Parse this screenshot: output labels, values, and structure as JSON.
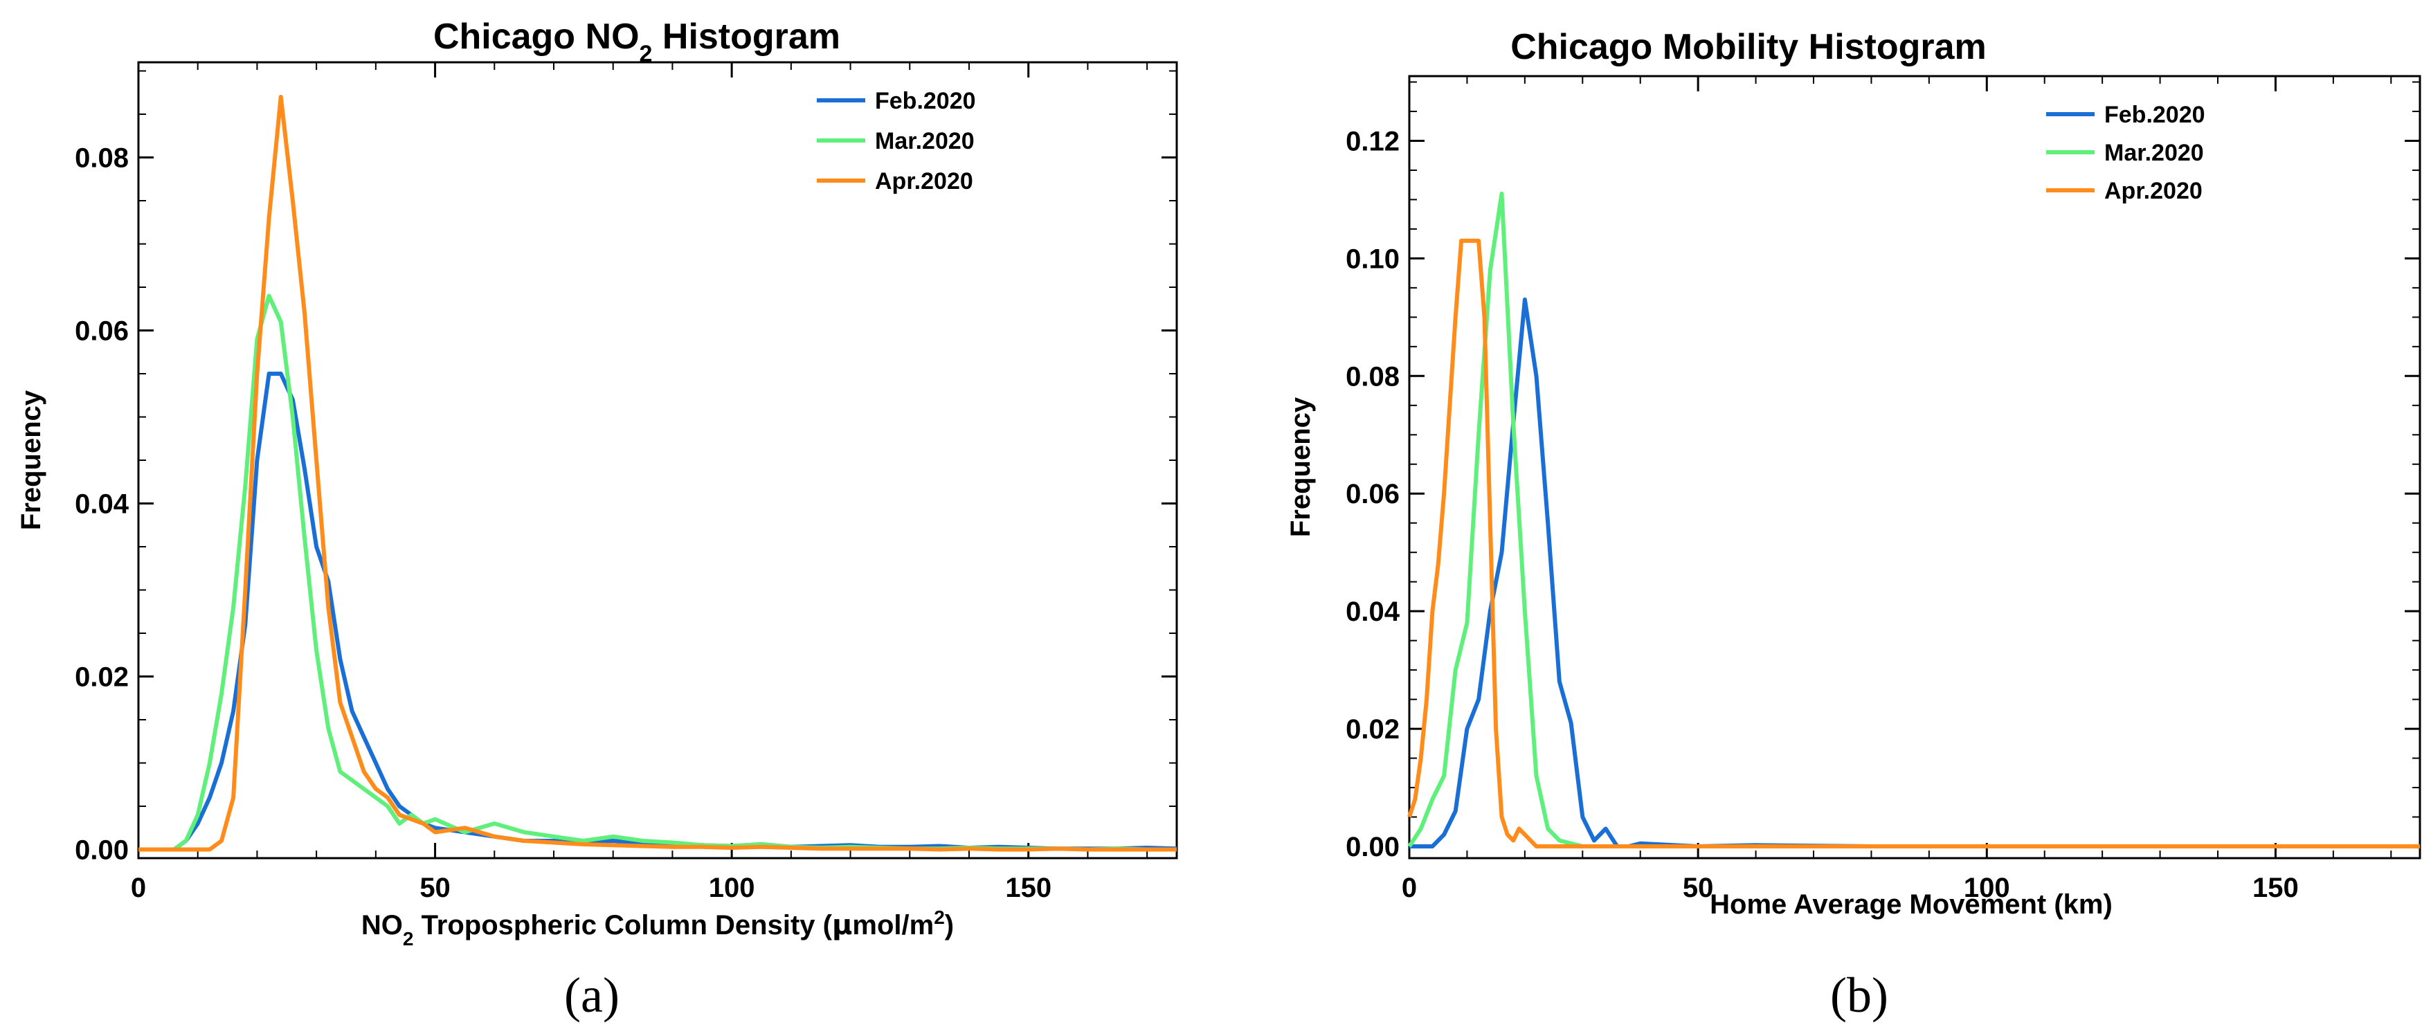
{
  "chart_data": [
    {
      "type": "line",
      "title_main": "Chicago NO",
      "title_sub": "2",
      "title_tail": " Histogram",
      "xlabel_pre": "NO",
      "xlabel_sub": "2",
      "xlabel_mid": " Tropospheric Column Density (",
      "xlabel_mu": "μ",
      "xlabel_unit": "mol/m",
      "xlabel_sup": "2",
      "xlabel_close": ")",
      "ylabel": "Frequency",
      "xlim": [
        0,
        175
      ],
      "ylim": [
        -0.001,
        0.091
      ],
      "xticks": [
        0,
        50,
        100,
        150
      ],
      "yticks": [
        0.0,
        0.02,
        0.04,
        0.06,
        0.08
      ],
      "ytick_labels": [
        "0.00",
        "0.02",
        "0.04",
        "0.06",
        "0.08"
      ],
      "caption": "(a)",
      "legend": [
        "Feb.2020",
        "Mar.2020",
        "Apr.2020"
      ],
      "series": [
        {
          "name": "Feb.2020",
          "color": "#1a6fd6",
          "x": [
            0,
            6,
            8,
            10,
            12,
            14,
            16,
            18,
            20,
            22,
            24,
            26,
            28,
            30,
            32,
            34,
            36,
            38,
            40,
            42,
            44,
            46,
            48,
            50,
            55,
            60,
            65,
            70,
            75,
            80,
            85,
            90,
            95,
            100,
            105,
            110,
            115,
            120,
            125,
            130,
            135,
            140,
            145,
            150,
            155,
            160,
            165,
            170,
            175
          ],
          "y": [
            0,
            0,
            0.001,
            0.003,
            0.006,
            0.01,
            0.016,
            0.026,
            0.045,
            0.055,
            0.055,
            0.052,
            0.044,
            0.035,
            0.031,
            0.022,
            0.016,
            0.013,
            0.01,
            0.007,
            0.005,
            0.004,
            0.003,
            0.0025,
            0.002,
            0.0015,
            0.001,
            0.001,
            0.0008,
            0.001,
            0.0007,
            0.0006,
            0.0005,
            0.0004,
            0.0006,
            0.0003,
            0.0004,
            0.0005,
            0.0003,
            0.0003,
            0.0004,
            0.0002,
            0.0003,
            0.0002,
            0.0001,
            0.0001,
            0.0001,
            0.0002,
            0.0001
          ]
        },
        {
          "name": "Mar.2020",
          "color": "#5ef07a",
          "x": [
            0,
            6,
            8,
            10,
            12,
            14,
            16,
            18,
            20,
            22,
            24,
            26,
            28,
            30,
            32,
            34,
            36,
            38,
            40,
            42,
            44,
            46,
            48,
            50,
            55,
            60,
            65,
            70,
            75,
            80,
            85,
            90,
            95,
            100,
            105,
            110,
            115,
            120,
            125,
            130,
            135,
            140,
            145,
            150,
            155,
            160,
            165,
            170,
            175
          ],
          "y": [
            0,
            0,
            0.001,
            0.004,
            0.01,
            0.018,
            0.028,
            0.042,
            0.059,
            0.064,
            0.061,
            0.05,
            0.036,
            0.023,
            0.014,
            0.009,
            0.008,
            0.007,
            0.006,
            0.005,
            0.003,
            0.004,
            0.003,
            0.0035,
            0.002,
            0.003,
            0.002,
            0.0015,
            0.001,
            0.0015,
            0.001,
            0.0008,
            0.0005,
            0.0004,
            0.0006,
            0.0003,
            0.0002,
            0.0003,
            0.0002,
            0.0001,
            0.0001,
            0.0002,
            0.0001,
            0.0001,
            0.0001,
            0,
            0.0001,
            0,
            0
          ]
        },
        {
          "name": "Apr.2020",
          "color": "#ff8c1a",
          "x": [
            0,
            6,
            8,
            10,
            12,
            14,
            16,
            18,
            20,
            22,
            24,
            26,
            28,
            30,
            32,
            34,
            36,
            38,
            40,
            42,
            44,
            46,
            48,
            50,
            55,
            60,
            65,
            70,
            75,
            80,
            85,
            90,
            95,
            100,
            105,
            110,
            115,
            120,
            125,
            130,
            135,
            140,
            145,
            150,
            155,
            160,
            165,
            170,
            175
          ],
          "y": [
            0,
            0,
            0,
            0,
            0,
            0.001,
            0.006,
            0.03,
            0.055,
            0.073,
            0.087,
            0.075,
            0.062,
            0.045,
            0.028,
            0.017,
            0.013,
            0.009,
            0.007,
            0.006,
            0.004,
            0.0035,
            0.003,
            0.002,
            0.0025,
            0.0015,
            0.001,
            0.0008,
            0.0006,
            0.0005,
            0.0004,
            0.0003,
            0.0003,
            0.0002,
            0.0003,
            0.0002,
            0.0001,
            0.0001,
            0.0001,
            0.0001,
            0,
            0.0001,
            0,
            0,
            0.0001,
            0,
            0,
            0,
            0
          ]
        }
      ]
    },
    {
      "type": "line",
      "title": "Chicago Mobility Histogram",
      "xlabel": "Home Average Movement (km)",
      "ylabel": "Frequency",
      "xlim": [
        0,
        175
      ],
      "ylim": [
        -0.002,
        0.131
      ],
      "xticks": [
        0,
        50,
        100,
        150
      ],
      "yticks": [
        0.0,
        0.02,
        0.04,
        0.06,
        0.08,
        0.1,
        0.12
      ],
      "ytick_labels": [
        "0.00",
        "0.02",
        "0.04",
        "0.06",
        "0.08",
        "0.10",
        "0.12"
      ],
      "caption": "(b)",
      "legend": [
        "Feb.2020",
        "Mar.2020",
        "Apr.2020"
      ],
      "series": [
        {
          "name": "Feb.2020",
          "color": "#1a6fd6",
          "x": [
            0,
            4,
            6,
            8,
            10,
            12,
            14,
            16,
            18,
            20,
            22,
            24,
            26,
            28,
            30,
            32,
            34,
            36,
            38,
            40,
            50,
            60,
            80,
            100,
            120,
            140,
            160,
            175
          ],
          "y": [
            0,
            0,
            0.002,
            0.006,
            0.02,
            0.025,
            0.04,
            0.05,
            0.072,
            0.093,
            0.08,
            0.055,
            0.028,
            0.021,
            0.005,
            0.001,
            0.003,
            0,
            0,
            0.0005,
            0,
            0.0002,
            0,
            0,
            0,
            0,
            0,
            0
          ]
        },
        {
          "name": "Mar.2020",
          "color": "#5ef07a",
          "x": [
            0,
            2,
            4,
            6,
            8,
            10,
            12,
            14,
            16,
            18,
            20,
            22,
            24,
            26,
            28,
            30,
            32,
            34,
            40,
            60,
            80,
            100,
            120,
            140,
            160,
            175
          ],
          "y": [
            0,
            0.003,
            0.008,
            0.012,
            0.03,
            0.038,
            0.07,
            0.098,
            0.111,
            0.072,
            0.04,
            0.012,
            0.003,
            0.001,
            0.0005,
            0,
            0,
            0,
            0,
            0,
            0,
            0,
            0,
            0,
            0,
            0
          ]
        },
        {
          "name": "Apr.2020",
          "color": "#ff8c1a",
          "x": [
            0,
            1,
            2,
            3,
            4,
            5,
            6,
            7,
            8,
            9,
            10,
            11,
            12,
            13,
            14,
            15,
            16,
            17,
            18,
            19,
            20,
            21,
            22,
            24,
            30,
            40,
            60,
            80,
            100,
            120,
            140,
            160,
            175
          ],
          "y": [
            0.005,
            0.008,
            0.015,
            0.025,
            0.04,
            0.048,
            0.06,
            0.075,
            0.09,
            0.103,
            0.103,
            0.103,
            0.103,
            0.09,
            0.055,
            0.02,
            0.005,
            0.002,
            0.001,
            0.003,
            0.002,
            0.001,
            0,
            0,
            0,
            0,
            0,
            0,
            0,
            0,
            0,
            0,
            0
          ]
        }
      ]
    }
  ]
}
